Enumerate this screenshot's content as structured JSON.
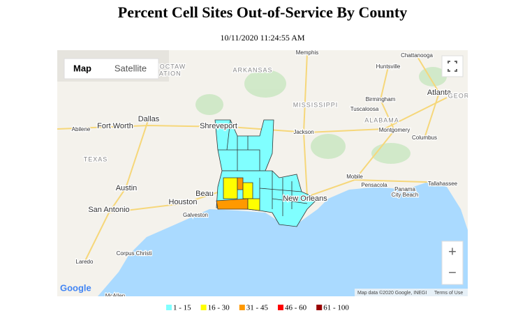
{
  "header": {
    "title": "Percent Cell Sites Out-of-Service By County",
    "timestamp": "10/11/2020 11:24:55 AM"
  },
  "map": {
    "controls": {
      "map": "Map",
      "satellite": "Satellite",
      "zoom_in": "+",
      "zoom_out": "−"
    },
    "labels": [
      "Memphis",
      "Chattanooga",
      "ARKANSAS",
      "Huntsville",
      "Atlanta",
      "GEOR",
      "Birmingham",
      "Tuscaloosa",
      "MISSISSIPPI",
      "CHOCTAW",
      "NATION",
      "Dallas",
      "Fort Worth",
      "Abilene",
      "Shreveport",
      "Jackson",
      "ALABAMA",
      "Montgomery",
      "Columbus",
      "TEXAS",
      "Mobile",
      "Pensacola",
      "Tallahassee",
      "Panama",
      "City Beach",
      "Austin",
      "Houston",
      "Beau",
      "New Orleans",
      "San Antonio",
      "Galveston",
      "Corpus Christi",
      "Laredo",
      "McAllen"
    ],
    "logo": "Google",
    "attribution": "Map data ©2020 Google, INEGI",
    "terms": "Terms of Use"
  },
  "legend": {
    "items": [
      {
        "label": "1 - 15",
        "color": "#80ffff"
      },
      {
        "label": "16 - 30",
        "color": "#ffff00"
      },
      {
        "label": "31 - 45",
        "color": "#ff9900"
      },
      {
        "label": "46 - 60",
        "color": "#ff0000"
      },
      {
        "label": "61 - 100",
        "color": "#990000"
      }
    ]
  }
}
